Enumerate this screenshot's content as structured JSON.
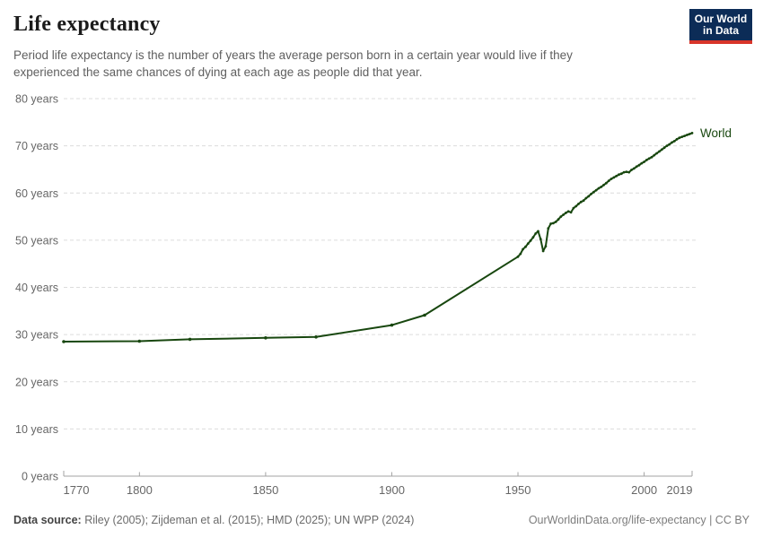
{
  "header": {
    "title": "Life expectancy",
    "subtitle_lines": [
      "Period life expectancy is the number of years the average person born in a certain year would live if they",
      "experienced the same chances of dying at each age as people did that year."
    ],
    "logo_line1": "Our World",
    "logo_line2": "in Data",
    "logo_bg_color": "#0c2c57",
    "logo_accent_color": "#d8352a"
  },
  "footer": {
    "source_label": "Data source:",
    "source_text": " Riley (2005); Zijdeman et al. (2015); HMD (2025); UN WPP (2024)",
    "right_text": "OurWorldinData.org/life-expectancy | CC BY"
  },
  "chart_data": {
    "type": "line",
    "title": "Life expectancy",
    "xlabel": "",
    "ylabel": "",
    "xlim": [
      1770,
      2019
    ],
    "ylim": [
      0,
      80
    ],
    "x_ticks": [
      1770,
      1800,
      1850,
      1900,
      1950,
      2000,
      2019
    ],
    "y_ticks": [
      0,
      10,
      20,
      30,
      40,
      50,
      60,
      70,
      80
    ],
    "y_tick_suffix": " years",
    "grid": "horizontal-dashed",
    "legend_position": "end-of-line-label",
    "colors": {
      "line": "#18470f",
      "grid": "#dcdcdc",
      "axis": "#a3a3a3",
      "tick_text": "#666666"
    },
    "series": [
      {
        "name": "World",
        "color": "#18470f",
        "points": [
          [
            1770,
            28.5
          ],
          [
            1800,
            28.6
          ],
          [
            1820,
            29.0
          ],
          [
            1850,
            29.3
          ],
          [
            1870,
            29.5
          ],
          [
            1900,
            32.0
          ],
          [
            1913,
            34.1
          ],
          [
            1950,
            46.5
          ],
          [
            1951,
            47.1
          ],
          [
            1952,
            48.1
          ],
          [
            1953,
            48.6
          ],
          [
            1954,
            49.3
          ],
          [
            1955,
            49.9
          ],
          [
            1956,
            50.6
          ],
          [
            1957,
            51.4
          ],
          [
            1958,
            51.9
          ],
          [
            1959,
            50.2
          ],
          [
            1960,
            47.7
          ],
          [
            1961,
            48.7
          ],
          [
            1962,
            52.5
          ],
          [
            1963,
            53.5
          ],
          [
            1964,
            53.6
          ],
          [
            1965,
            53.9
          ],
          [
            1966,
            54.4
          ],
          [
            1967,
            55.0
          ],
          [
            1968,
            55.4
          ],
          [
            1969,
            55.8
          ],
          [
            1970,
            56.1
          ],
          [
            1971,
            55.9
          ],
          [
            1972,
            56.8
          ],
          [
            1973,
            57.2
          ],
          [
            1974,
            57.7
          ],
          [
            1975,
            58.1
          ],
          [
            1976,
            58.4
          ],
          [
            1977,
            58.9
          ],
          [
            1978,
            59.3
          ],
          [
            1979,
            59.8
          ],
          [
            1980,
            60.2
          ],
          [
            1981,
            60.6
          ],
          [
            1982,
            61.0
          ],
          [
            1983,
            61.3
          ],
          [
            1984,
            61.7
          ],
          [
            1985,
            62.1
          ],
          [
            1986,
            62.6
          ],
          [
            1987,
            63.0
          ],
          [
            1988,
            63.3
          ],
          [
            1989,
            63.6
          ],
          [
            1990,
            63.9
          ],
          [
            1991,
            64.1
          ],
          [
            1992,
            64.4
          ],
          [
            1993,
            64.5
          ],
          [
            1994,
            64.4
          ],
          [
            1995,
            64.9
          ],
          [
            1996,
            65.2
          ],
          [
            1997,
            65.6
          ],
          [
            1998,
            65.9
          ],
          [
            1999,
            66.3
          ],
          [
            2000,
            66.6
          ],
          [
            2001,
            67.0
          ],
          [
            2002,
            67.3
          ],
          [
            2003,
            67.6
          ],
          [
            2004,
            68.0
          ],
          [
            2005,
            68.4
          ],
          [
            2006,
            68.8
          ],
          [
            2007,
            69.2
          ],
          [
            2008,
            69.6
          ],
          [
            2009,
            70.0
          ],
          [
            2010,
            70.3
          ],
          [
            2011,
            70.7
          ],
          [
            2012,
            71.0
          ],
          [
            2013,
            71.4
          ],
          [
            2014,
            71.7
          ],
          [
            2015,
            71.9
          ],
          [
            2016,
            72.1
          ],
          [
            2017,
            72.3
          ],
          [
            2018,
            72.5
          ],
          [
            2019,
            72.7
          ]
        ]
      }
    ]
  }
}
